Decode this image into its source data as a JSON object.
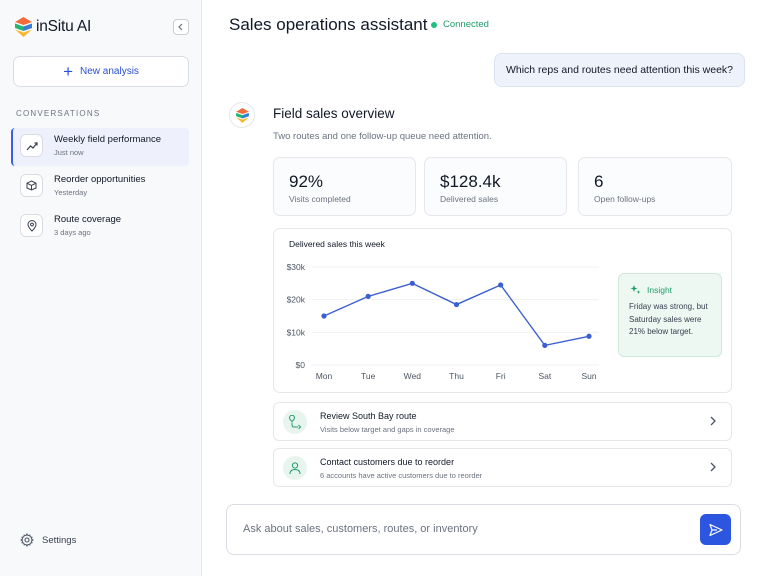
{
  "app": {
    "name": "inSitu AI"
  },
  "sidebar": {
    "new_analysis_label": "New analysis",
    "section_label": "CONVERSATIONS",
    "conversations": [
      {
        "title": "Weekly field performance",
        "time": "Just now",
        "icon": "trend-icon",
        "active": true
      },
      {
        "title": "Reorder opportunities",
        "time": "Yesterday",
        "icon": "box-icon",
        "active": false
      },
      {
        "title": "Route coverage",
        "time": "3 days ago",
        "icon": "map-pin-icon",
        "active": false
      }
    ],
    "settings_label": "Settings"
  },
  "header": {
    "title": "Sales operations assistant",
    "status": "Connected",
    "status_color": "#1f9d6b"
  },
  "chat": {
    "user_message": "Which reps and routes need attention this week?",
    "response": {
      "title": "Field sales overview",
      "subtitle": "Two routes and one follow-up queue need attention.",
      "kpis": [
        {
          "value": "92%",
          "label": "Visits completed"
        },
        {
          "value": "$128.4k",
          "label": "Delivered sales"
        },
        {
          "value": "6",
          "label": "Open follow-ups"
        }
      ],
      "chart_title": "Delivered sales this week",
      "insight": {
        "title": "Insight",
        "body": "Friday was strong, but Saturday sales were 21% below target."
      },
      "tasks": [
        {
          "title": "Review South Bay route",
          "subtitle": "Visits below target and gaps in coverage",
          "icon": "route-icon"
        },
        {
          "title": "Contact customers due to reorder",
          "subtitle": "6 accounts have active customers due to reorder",
          "icon": "user-icon"
        }
      ]
    }
  },
  "composer": {
    "placeholder": "Ask about sales, customers, routes, or inventory"
  },
  "colors": {
    "accent": "#2d56e0",
    "line": "#3b5fcf",
    "success": "#1f9d6b"
  },
  "chart_data": {
    "type": "line",
    "title": "Delivered sales this week",
    "categories": [
      "Mon",
      "Tue",
      "Wed",
      "Thu",
      "Fri",
      "Sat",
      "Sun"
    ],
    "series": [
      {
        "values": [
          15000,
          21000,
          25000,
          18500,
          24500,
          6000,
          8800
        ]
      }
    ],
    "yticks": [
      "$0",
      "$10k",
      "$20k",
      "$30k"
    ],
    "ylim": [
      0,
      30000
    ],
    "grid": true
  }
}
